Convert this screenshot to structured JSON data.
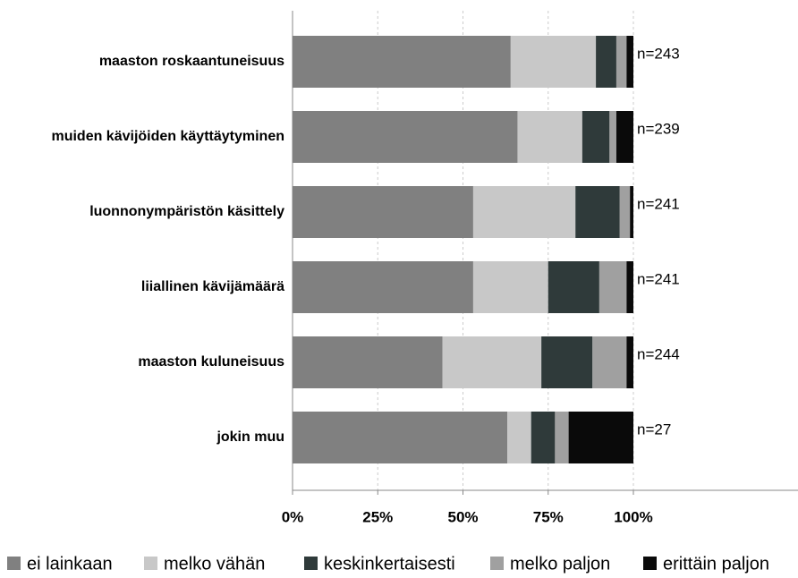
{
  "chart_data": {
    "type": "stacked_barh",
    "categories": [
      "maaston roskaantuneisuus",
      "muiden kävijöiden käyttäytyminen",
      "luonnonympäristön käsittely",
      "liiallinen kävijämäärä",
      "maaston kuluneisuus",
      "jokin muu"
    ],
    "series": [
      {
        "name": "ei lainkaan",
        "color": "#808080",
        "values": [
          64,
          66,
          53,
          53,
          44,
          63
        ]
      },
      {
        "name": "melko vähän",
        "color": "#c8c8c8",
        "values": [
          25,
          19,
          30,
          22,
          29,
          7
        ]
      },
      {
        "name": "keskinkertaisesti",
        "color": "#2f3a3a",
        "values": [
          6,
          8,
          13,
          15,
          15,
          7
        ]
      },
      {
        "name": "melko paljon",
        "color": "#a0a0a0",
        "values": [
          3,
          2,
          3,
          8,
          10,
          4
        ]
      },
      {
        "name": "erittäin paljon",
        "color": "#0a0a0a",
        "values": [
          2,
          5,
          1,
          2,
          2,
          19
        ]
      }
    ],
    "annotations": [
      "n=243",
      "n=239",
      "n=241",
      "n=241",
      "n=244",
      "n=27"
    ],
    "xlim": [
      0,
      100
    ],
    "xticks": [
      {
        "value": 0,
        "label": "0%"
      },
      {
        "value": 25,
        "label": "25%"
      },
      {
        "value": 50,
        "label": "50%"
      },
      {
        "value": 75,
        "label": "75%"
      },
      {
        "value": 100,
        "label": "100%"
      }
    ],
    "grid": true,
    "legend": "bottom"
  }
}
